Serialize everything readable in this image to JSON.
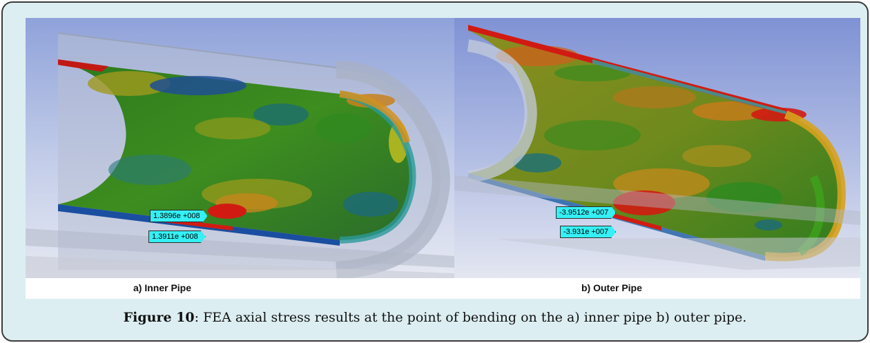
{
  "panel_a": {
    "label": "a) Inner Pipe",
    "probe_max": "1.3896e +008",
    "probe_min": "1.3911e +008"
  },
  "panel_b": {
    "label": "b) Outer Pipe",
    "probe_max": "-3.9512e +007",
    "probe_min": "-3.931e +007"
  },
  "caption": {
    "figure_label": "Figure 10",
    "text": ": FEA axial stress results at the point of bending on the a) inner pipe b) outer pipe."
  },
  "colors": {
    "frame_background": "#dceef2",
    "frame_border": "#3a3a3a",
    "probe_fill": "#35f0f4",
    "stress_low": "#1a3f8f",
    "stress_mid": "#2f8a1f",
    "stress_high": "#d11b12"
  }
}
